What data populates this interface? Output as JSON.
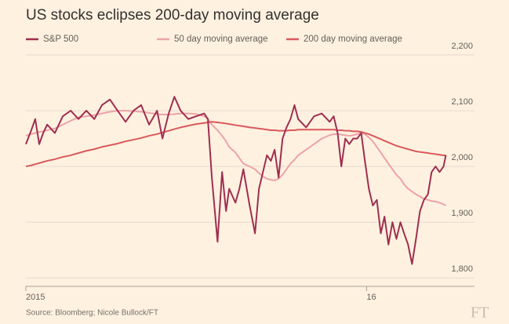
{
  "chart_data": {
    "type": "line",
    "title": "US stocks eclipses 200-day moving average",
    "source": "Source: Bloomberg; Nicole Bullock/FT",
    "logo": "FT",
    "x": [
      0,
      0.19,
      0.33,
      0.47,
      0.61,
      0.75,
      1.02,
      1.3,
      1.58,
      1.85,
      2.13,
      2.41,
      2.68,
      2.96,
      3.23,
      3.51,
      3.79,
      4.06,
      4.34,
      4.62,
      4.81,
      5.03,
      5.23,
      5.45,
      5.72,
      6.0,
      6.28,
      6.41,
      6.55,
      6.75,
      6.91,
      7.05,
      7.16,
      7.38,
      7.52,
      7.66,
      7.88,
      8.07,
      8.21,
      8.35,
      8.49,
      8.63,
      8.76,
      8.9,
      9.04,
      9.18,
      9.32,
      9.46,
      9.59,
      9.87,
      10.15,
      10.42,
      10.7,
      10.84,
      10.98,
      11.11,
      11.25,
      11.39,
      11.53,
      11.67,
      11.81,
      11.94,
      12.08,
      12.22,
      12.36,
      12.5,
      12.63,
      12.77,
      12.91,
      13.05,
      13.19,
      13.32,
      13.46,
      13.6,
      13.74,
      13.88,
      14.02,
      14.16,
      14.29,
      14.43,
      14.57,
      14.71,
      14.79
    ],
    "series": [
      {
        "name": "S&P 500",
        "color": "#9e2f50",
        "width": 2,
        "values": [
          2040,
          2065,
          2085,
          2040,
          2060,
          2075,
          2060,
          2090,
          2100,
          2085,
          2100,
          2085,
          2110,
          2120,
          2100,
          2080,
          2100,
          2110,
          2075,
          2100,
          2050,
          2095,
          2125,
          2100,
          2085,
          2090,
          2095,
          2085,
          1980,
          1865,
          1990,
          1920,
          1960,
          1935,
          1960,
          1995,
          1930,
          1880,
          1960,
          1990,
          2020,
          2010,
          2030,
          1980,
          2050,
          2070,
          2085,
          2110,
          2085,
          2070,
          2090,
          2095,
          2080,
          2090,
          2060,
          2000,
          2050,
          2040,
          2050,
          2050,
          2060,
          2010,
          1960,
          1930,
          1940,
          1880,
          1910,
          1860,
          1900,
          1870,
          1900,
          1880,
          1860,
          1825,
          1870,
          1920,
          1940,
          1950,
          1990,
          2000,
          1990,
          2000,
          2020
        ]
      },
      {
        "name": "50 day moving average",
        "color": "#eda2a8",
        "width": 2,
        "values": [
          2055,
          2058,
          2060,
          2062,
          2063,
          2065,
          2068,
          2075,
          2082,
          2088,
          2090,
          2092,
          2095,
          2098,
          2100,
          2100,
          2099,
          2098,
          2096,
          2094,
          2093,
          2093,
          2094,
          2095,
          2095,
          2094,
          2090,
          2085,
          2075,
          2065,
          2055,
          2045,
          2035,
          2025,
          2015,
          2005,
          2000,
          1995,
          1988,
          1982,
          1978,
          1976,
          1975,
          1978,
          1985,
          1995,
          2005,
          2012,
          2020,
          2030,
          2040,
          2050,
          2056,
          2058,
          2058,
          2057,
          2056,
          2055,
          2056,
          2058,
          2060,
          2058,
          2052,
          2045,
          2035,
          2025,
          2015,
          2005,
          1995,
          1985,
          1978,
          1968,
          1960,
          1955,
          1950,
          1946,
          1942,
          1940,
          1938,
          1937,
          1935,
          1932,
          1930
        ]
      },
      {
        "name": "200 day moving average",
        "color": "#d9595c",
        "width": 2,
        "values": [
          2000,
          2002,
          2004,
          2006,
          2008,
          2010,
          2013,
          2017,
          2020,
          2024,
          2028,
          2031,
          2035,
          2038,
          2041,
          2045,
          2048,
          2051,
          2055,
          2058,
          2061,
          2064,
          2067,
          2070,
          2073,
          2076,
          2078,
          2079,
          2080,
          2079,
          2078,
          2077,
          2076,
          2074,
          2073,
          2072,
          2070,
          2069,
          2068,
          2067,
          2066,
          2065,
          2065,
          2064,
          2064,
          2064,
          2065,
          2065,
          2066,
          2066,
          2066,
          2066,
          2066,
          2066,
          2065,
          2065,
          2064,
          2064,
          2063,
          2063,
          2062,
          2060,
          2058,
          2055,
          2052,
          2049,
          2046,
          2043,
          2040,
          2037,
          2035,
          2033,
          2031,
          2029,
          2027,
          2026,
          2025,
          2024,
          2023,
          2022,
          2021,
          2020,
          2020
        ]
      }
    ],
    "xlim": [
      0,
      15.8
    ],
    "xticks": [
      {
        "value": 0,
        "label": "2015"
      },
      {
        "value": 12,
        "label": "16"
      }
    ],
    "ylim": [
      1785,
      2200
    ],
    "yticks": [
      {
        "value": 1800,
        "label": "1,800"
      },
      {
        "value": 1900,
        "label": "1,900"
      },
      {
        "value": 2000,
        "label": "2,000"
      },
      {
        "value": 2100,
        "label": "2,100"
      },
      {
        "value": 2200,
        "label": "2,200"
      }
    ],
    "grid": true
  }
}
